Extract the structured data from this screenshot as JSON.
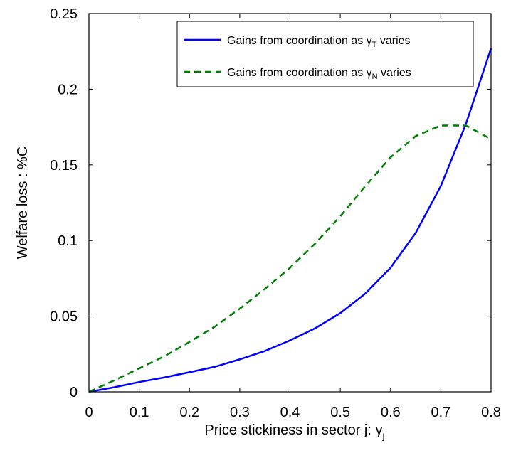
{
  "chart_data": {
    "type": "line",
    "xlabel_main": "Price stickiness in sector j: ",
    "xlabel_symbol": "γ",
    "xlabel_sub": "j",
    "ylabel": "Welfare loss : %C",
    "xlim": [
      0,
      0.8
    ],
    "ylim": [
      0,
      0.25
    ],
    "x_ticks": [
      "0",
      "0.1",
      "0.2",
      "0.3",
      "0.4",
      "0.5",
      "0.6",
      "0.7",
      "0.8"
    ],
    "y_ticks": [
      "0",
      "0.05",
      "0.1",
      "0.15",
      "0.2",
      "0.25"
    ],
    "grid": false,
    "legend_position": "top-right",
    "x": [
      0,
      0.05,
      0.1,
      0.15,
      0.2,
      0.25,
      0.3,
      0.35,
      0.4,
      0.45,
      0.5,
      0.55,
      0.6,
      0.65,
      0.7,
      0.75,
      0.8
    ],
    "series": [
      {
        "legend_main": "Gains from coordination as ",
        "legend_symbol": "γ",
        "legend_sub": "T",
        "legend_tail": " varies",
        "color": "#0000ff",
        "style": "solid",
        "values": [
          0,
          0.003,
          0.0065,
          0.0095,
          0.013,
          0.0165,
          0.0215,
          0.027,
          0.034,
          0.042,
          0.052,
          0.065,
          0.082,
          0.105,
          0.136,
          0.177,
          0.227
        ]
      },
      {
        "legend_main": "Gains from coordination as ",
        "legend_symbol": "γ",
        "legend_sub": "N",
        "legend_tail": " varies",
        "color": "#008000",
        "style": "dashed",
        "values": [
          0,
          0.0075,
          0.0155,
          0.0235,
          0.033,
          0.043,
          0.055,
          0.068,
          0.082,
          0.098,
          0.116,
          0.136,
          0.155,
          0.169,
          0.176,
          0.176,
          0.167
        ]
      }
    ]
  }
}
